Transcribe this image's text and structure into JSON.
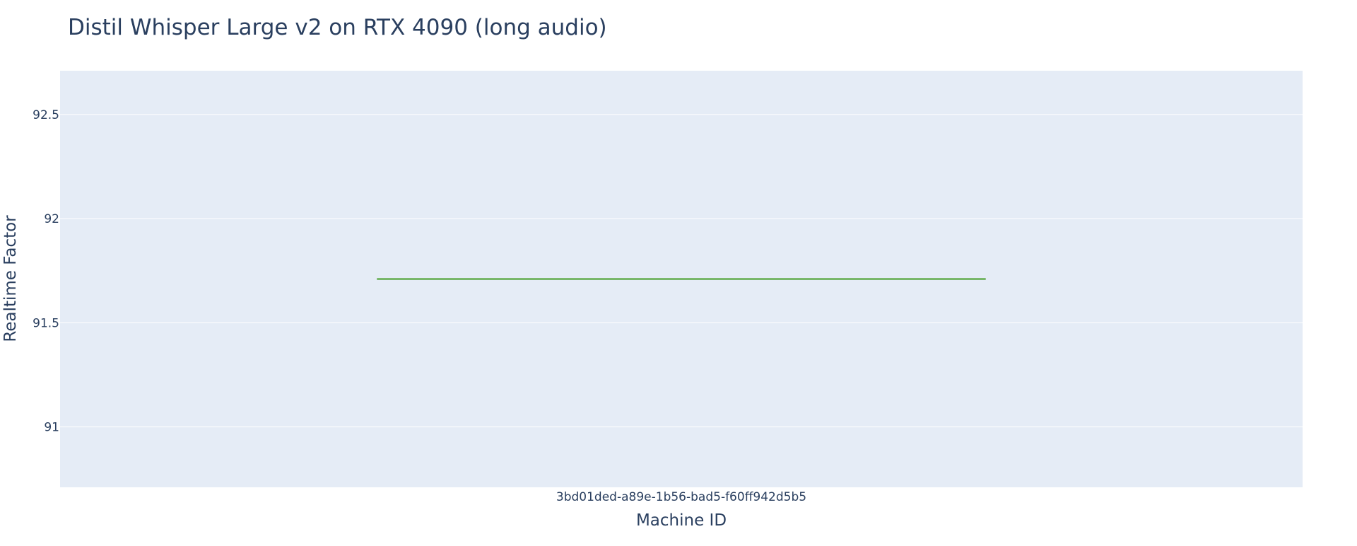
{
  "chart_data": {
    "type": "box",
    "title": "Distil Whisper Large v2 on RTX 4090 (long audio)",
    "xlabel": "Machine ID",
    "ylabel": "Realtime Factor",
    "categories": [
      "3bd01ded-a89e-1b56-bad5-f60ff942d5b5"
    ],
    "series": [
      {
        "values": [
          91.71
        ]
      }
    ],
    "yticks": [
      91,
      91.5,
      92,
      92.5
    ],
    "ytick_labels": [
      "91",
      "91.5",
      "92",
      "92.5"
    ],
    "ylim": [
      90.71,
      92.71
    ],
    "grid": true,
    "legend": "none",
    "colors": {
      "plot_background": "#e5ecf6",
      "paper_background": "#ffffff",
      "grid": "#ffffff",
      "series": "#3d9a1e",
      "text": "#2a3f5f"
    }
  }
}
